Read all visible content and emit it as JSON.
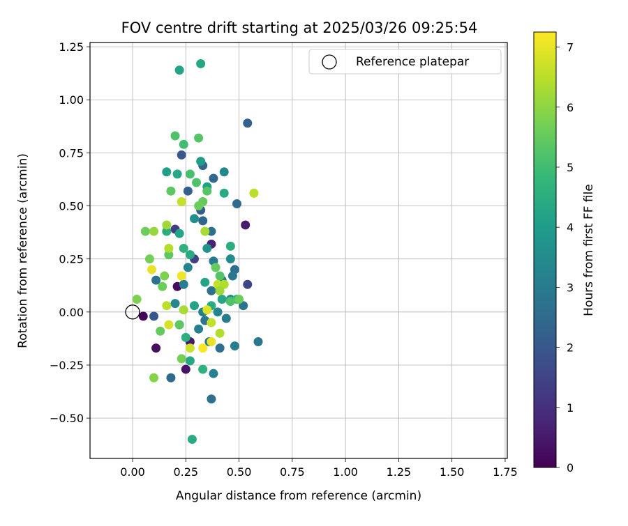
{
  "chart_data": {
    "type": "scatter",
    "title": "FOV centre drift starting at 2025/03/26 09:25:54",
    "xlabel": "Angular distance from reference (arcmin)",
    "ylabel": "Rotation from reference (arcmin)",
    "xlim": [
      -0.2,
      1.76
    ],
    "ylim": [
      -0.69,
      1.27
    ],
    "xticks": [
      0.0,
      0.25,
      0.5,
      0.75,
      1.0,
      1.25,
      1.5,
      1.75
    ],
    "xtick_labels": [
      "0.00",
      "0.25",
      "0.50",
      "0.75",
      "1.00",
      "1.25",
      "1.50",
      "1.75"
    ],
    "yticks": [
      -0.5,
      -0.25,
      0.0,
      0.25,
      0.5,
      0.75,
      1.0,
      1.25
    ],
    "ytick_labels": [
      "−0.50",
      "−0.25",
      "0.00",
      "0.25",
      "0.50",
      "0.75",
      "1.00",
      "1.25"
    ],
    "grid": true,
    "legend": {
      "position": "top-right",
      "entries": [
        "Reference platepar"
      ]
    },
    "reference_point": {
      "x": 0.0,
      "y": 0.0,
      "label": "Reference platepar"
    },
    "colorbar": {
      "label": "Hours from first FF file",
      "min": 0,
      "max": 7.25,
      "ticks": [
        0,
        1,
        2,
        3,
        4,
        5,
        6,
        7
      ],
      "tick_labels": [
        "0",
        "1",
        "2",
        "3",
        "4",
        "5",
        "6",
        "7"
      ],
      "colormap": "viridis",
      "stops": [
        "#440154",
        "#482878",
        "#3e4989",
        "#31688e",
        "#26828e",
        "#1f9e89",
        "#35b779",
        "#6ece58",
        "#b5de2b",
        "#fde725"
      ]
    },
    "points": [
      {
        "x": 0.05,
        "y": -0.02,
        "c": 0.1
      },
      {
        "x": 0.11,
        "y": -0.17,
        "c": 0.3
      },
      {
        "x": 0.21,
        "y": 0.12,
        "c": 0.2
      },
      {
        "x": 0.25,
        "y": -0.27,
        "c": 0.4
      },
      {
        "x": 0.27,
        "y": -0.14,
        "c": 0.5
      },
      {
        "x": 0.53,
        "y": 0.41,
        "c": 0.6
      },
      {
        "x": 0.37,
        "y": 0.32,
        "c": 0.7
      },
      {
        "x": 0.2,
        "y": 0.39,
        "c": 1.3
      },
      {
        "x": 0.54,
        "y": 0.13,
        "c": 1.5
      },
      {
        "x": 0.29,
        "y": 0.25,
        "c": 1.4
      },
      {
        "x": 0.1,
        "y": -0.02,
        "c": 2.0
      },
      {
        "x": 0.54,
        "y": 0.89,
        "c": 2.2
      },
      {
        "x": 0.23,
        "y": 0.74,
        "c": 2.0
      },
      {
        "x": 0.33,
        "y": 0.69,
        "c": 2.3
      },
      {
        "x": 0.38,
        "y": 0.63,
        "c": 2.4
      },
      {
        "x": 0.26,
        "y": 0.57,
        "c": 2.2
      },
      {
        "x": 0.49,
        "y": 0.51,
        "c": 2.5
      },
      {
        "x": 0.32,
        "y": 0.48,
        "c": 2.1
      },
      {
        "x": 0.33,
        "y": 0.43,
        "c": 2.4
      },
      {
        "x": 0.37,
        "y": 0.38,
        "c": 2.6
      },
      {
        "x": 0.48,
        "y": 0.2,
        "c": 2.6
      },
      {
        "x": 0.18,
        "y": -0.31,
        "c": 2.5
      },
      {
        "x": 0.37,
        "y": -0.41,
        "c": 2.7
      },
      {
        "x": 0.11,
        "y": 0.15,
        "c": 2.8
      },
      {
        "x": 0.34,
        "y": -0.04,
        "c": 2.8
      },
      {
        "x": 0.59,
        "y": -0.14,
        "c": 2.9
      },
      {
        "x": 0.41,
        "y": -0.17,
        "c": 2.6
      },
      {
        "x": 0.48,
        "y": -0.16,
        "c": 3.0
      },
      {
        "x": 0.37,
        "y": 0.1,
        "c": 2.7
      },
      {
        "x": 0.42,
        "y": 0.15,
        "c": 2.9
      },
      {
        "x": 0.47,
        "y": 0.17,
        "c": 2.9
      },
      {
        "x": 0.52,
        "y": 0.03,
        "c": 2.8
      },
      {
        "x": 0.44,
        "y": -0.03,
        "c": 3.0
      },
      {
        "x": 0.38,
        "y": -0.29,
        "c": 3.2
      },
      {
        "x": 0.38,
        "y": 0.24,
        "c": 3.0
      },
      {
        "x": 0.31,
        "y": -0.08,
        "c": 3.1
      },
      {
        "x": 0.36,
        "y": -0.14,
        "c": 2.9
      },
      {
        "x": 0.33,
        "y": 0.0,
        "c": 3.2
      },
      {
        "x": 0.24,
        "y": 0.13,
        "c": 3.1
      },
      {
        "x": 0.29,
        "y": 0.44,
        "c": 3.6
      },
      {
        "x": 0.35,
        "y": 0.3,
        "c": 3.7
      },
      {
        "x": 0.43,
        "y": 0.66,
        "c": 3.4
      },
      {
        "x": 0.46,
        "y": 0.25,
        "c": 3.5
      },
      {
        "x": 0.26,
        "y": 0.21,
        "c": 3.3
      },
      {
        "x": 0.2,
        "y": 0.04,
        "c": 3.4
      },
      {
        "x": 0.46,
        "y": 0.06,
        "c": 3.6
      },
      {
        "x": 0.4,
        "y": 0.0,
        "c": 3.3
      },
      {
        "x": 0.32,
        "y": 1.17,
        "c": 4.3
      },
      {
        "x": 0.22,
        "y": 1.14,
        "c": 4.2
      },
      {
        "x": 0.32,
        "y": 0.71,
        "c": 4.0
      },
      {
        "x": 0.16,
        "y": 0.66,
        "c": 4.1
      },
      {
        "x": 0.21,
        "y": 0.65,
        "c": 4.3
      },
      {
        "x": 0.43,
        "y": 0.56,
        "c": 4.4
      },
      {
        "x": 0.35,
        "y": 0.59,
        "c": 4.1
      },
      {
        "x": 0.22,
        "y": 0.37,
        "c": 4.2
      },
      {
        "x": 0.16,
        "y": 0.38,
        "c": 4.5
      },
      {
        "x": 0.46,
        "y": 0.31,
        "c": 4.5
      },
      {
        "x": 0.24,
        "y": 0.3,
        "c": 4.6
      },
      {
        "x": 0.27,
        "y": 0.27,
        "c": 4.4
      },
      {
        "x": 0.34,
        "y": 0.14,
        "c": 4.2
      },
      {
        "x": 0.42,
        "y": 0.06,
        "c": 4.3
      },
      {
        "x": 0.49,
        "y": 0.06,
        "c": 4.6
      },
      {
        "x": 0.28,
        "y": -0.6,
        "c": 4.4
      },
      {
        "x": 0.33,
        "y": -0.27,
        "c": 4.6
      },
      {
        "x": 0.27,
        "y": -0.23,
        "c": 4.3
      },
      {
        "x": 0.25,
        "y": -0.12,
        "c": 4.5
      },
      {
        "x": 0.29,
        "y": 0.03,
        "c": 4.2
      },
      {
        "x": 0.37,
        "y": 0.03,
        "c": 4.4
      },
      {
        "x": 0.22,
        "y": -0.06,
        "c": 4.7
      },
      {
        "x": 0.31,
        "y": 0.82,
        "c": 5.3
      },
      {
        "x": 0.2,
        "y": 0.83,
        "c": 5.2
      },
      {
        "x": 0.24,
        "y": 0.79,
        "c": 5.0
      },
      {
        "x": 0.27,
        "y": 0.65,
        "c": 5.1
      },
      {
        "x": 0.3,
        "y": 0.61,
        "c": 5.2
      },
      {
        "x": 0.18,
        "y": 0.57,
        "c": 5.4
      },
      {
        "x": 0.35,
        "y": 0.57,
        "c": 5.3
      },
      {
        "x": 0.33,
        "y": 0.52,
        "c": 5.5
      },
      {
        "x": 0.31,
        "y": 0.5,
        "c": 5.6
      },
      {
        "x": 0.06,
        "y": 0.38,
        "c": 5.6
      },
      {
        "x": 0.17,
        "y": 0.27,
        "c": 5.4
      },
      {
        "x": 0.08,
        "y": 0.25,
        "c": 5.7
      },
      {
        "x": 0.15,
        "y": 0.17,
        "c": 5.8
      },
      {
        "x": 0.39,
        "y": 0.21,
        "c": 5.5
      },
      {
        "x": 0.14,
        "y": 0.12,
        "c": 5.6
      },
      {
        "x": 0.41,
        "y": 0.17,
        "c": 5.3
      },
      {
        "x": 0.02,
        "y": 0.06,
        "c": 5.8
      },
      {
        "x": 0.46,
        "y": 0.05,
        "c": 5.2
      },
      {
        "x": 0.5,
        "y": 0.06,
        "c": 5.6
      },
      {
        "x": 0.13,
        "y": -0.09,
        "c": 5.5
      },
      {
        "x": 0.22,
        "y": -0.06,
        "c": 5.4
      },
      {
        "x": 0.23,
        "y": -0.22,
        "c": 5.7
      },
      {
        "x": 0.1,
        "y": -0.31,
        "c": 5.9
      },
      {
        "x": 0.57,
        "y": 0.56,
        "c": 6.5
      },
      {
        "x": 0.23,
        "y": 0.52,
        "c": 6.6
      },
      {
        "x": 0.16,
        "y": 0.41,
        "c": 6.2
      },
      {
        "x": 0.1,
        "y": 0.38,
        "c": 6.1
      },
      {
        "x": 0.34,
        "y": 0.38,
        "c": 6.3
      },
      {
        "x": 0.17,
        "y": 0.3,
        "c": 6.4
      },
      {
        "x": 0.4,
        "y": 0.13,
        "c": 6.6
      },
      {
        "x": 0.43,
        "y": 0.13,
        "c": 6.4
      },
      {
        "x": 0.16,
        "y": 0.03,
        "c": 6.5
      },
      {
        "x": 0.41,
        "y": 0.1,
        "c": 6.2
      },
      {
        "x": 0.24,
        "y": 0.01,
        "c": 6.3
      },
      {
        "x": 0.41,
        "y": -0.1,
        "c": 6.4
      },
      {
        "x": 0.37,
        "y": -0.05,
        "c": 6.6
      },
      {
        "x": 0.27,
        "y": -0.17,
        "c": 6.7
      },
      {
        "x": 0.09,
        "y": 0.2,
        "c": 7.0
      },
      {
        "x": 0.23,
        "y": 0.17,
        "c": 7.1
      },
      {
        "x": 0.35,
        "y": 0.01,
        "c": 6.9
      },
      {
        "x": 0.17,
        "y": -0.06,
        "c": 6.8
      },
      {
        "x": 0.33,
        "y": -0.17,
        "c": 7.2
      },
      {
        "x": 0.37,
        "y": -0.14,
        "c": 7.0
      }
    ]
  }
}
